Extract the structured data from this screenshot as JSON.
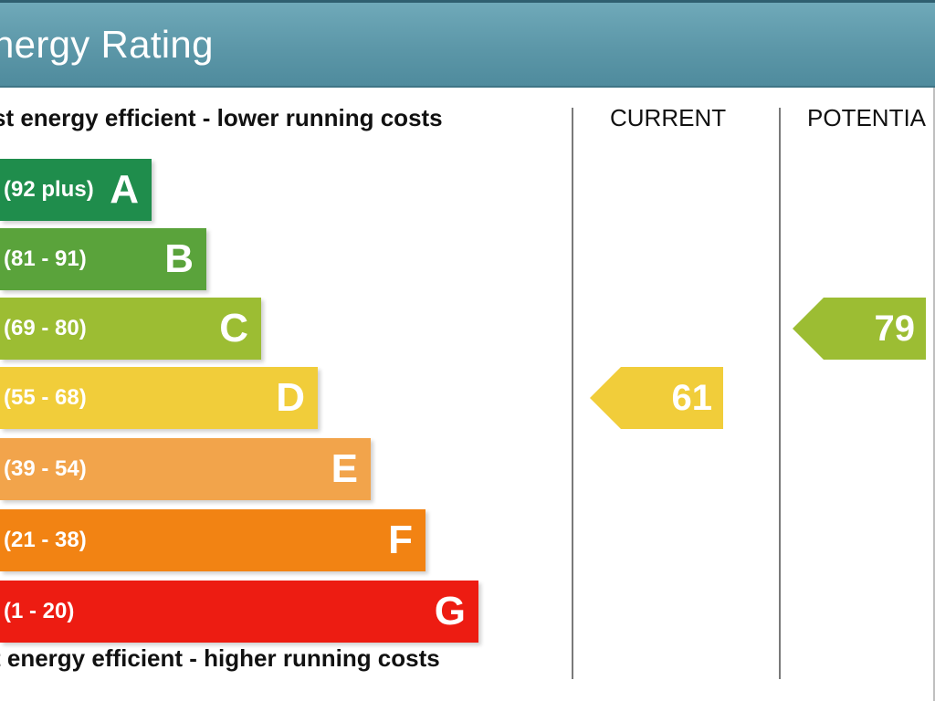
{
  "header": {
    "title": "nergy Rating"
  },
  "captions": {
    "top": "st energy efficient - lower running costs",
    "bottom": "t energy efficient - higher running costs"
  },
  "columns": {
    "current": "CURRENT",
    "potential": "POTENTIA"
  },
  "bands": [
    {
      "letter": "A",
      "range": "(92 plus)",
      "color": "#1f8d4c"
    },
    {
      "letter": "B",
      "range": "(81 - 91)",
      "color": "#5aa33b"
    },
    {
      "letter": "C",
      "range": "(69 - 80)",
      "color": "#9cbd33"
    },
    {
      "letter": "D",
      "range": "(55 - 68)",
      "color": "#f1cd3a"
    },
    {
      "letter": "E",
      "range": "(39 - 54)",
      "color": "#f2a44b"
    },
    {
      "letter": "F",
      "range": "(21 - 38)",
      "color": "#f28313"
    },
    {
      "letter": "G",
      "range": "(1 - 20)",
      "color": "#ed1c12"
    }
  ],
  "ratings": {
    "current": {
      "value": "61",
      "band": "D",
      "color": "#f1cd3a"
    },
    "potential": {
      "value": "79",
      "band": "C",
      "color": "#9cbd33"
    }
  }
}
